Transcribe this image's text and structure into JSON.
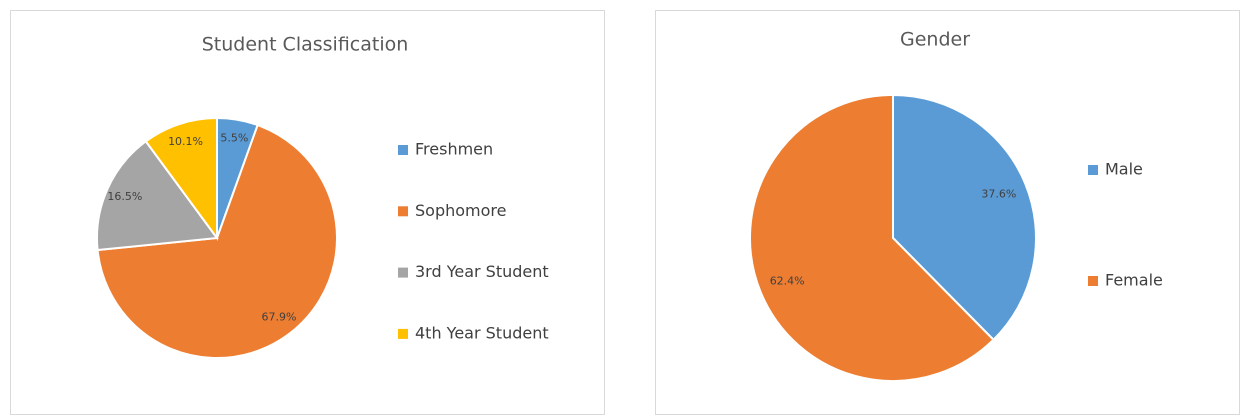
{
  "chart_data": [
    {
      "type": "pie",
      "title": "Student Classification",
      "categories": [
        "Freshmen",
        "Sophomore",
        "3rd Year Student",
        "4th Year Student"
      ],
      "values": [
        5.5,
        67.9,
        16.5,
        10.1
      ],
      "value_labels": [
        "5.5%",
        "67.9%",
        "16.5%",
        "10.1%"
      ],
      "colors": [
        "#5b9bd5",
        "#ed7d31",
        "#a5a5a5",
        "#ffc000"
      ],
      "legend": "right"
    },
    {
      "type": "pie",
      "title": "Gender",
      "categories": [
        "Male",
        "Female"
      ],
      "values": [
        37.6,
        62.4
      ],
      "value_labels": [
        "37.6%",
        "62.4%"
      ],
      "colors": [
        "#5b9bd5",
        "#ed7d31"
      ],
      "legend": "right"
    }
  ]
}
